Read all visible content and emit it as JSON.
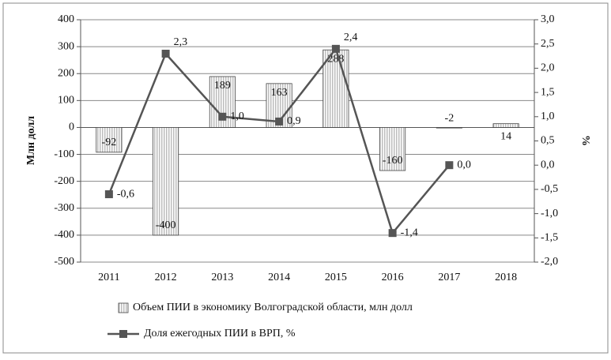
{
  "chart_data": {
    "type": "combo",
    "y_label": "Млн долл",
    "y2_label": "%",
    "categories": [
      "2011",
      "2012",
      "2013",
      "2014",
      "2015",
      "2016",
      "2017",
      "2018"
    ],
    "ylim": [
      -500,
      400
    ],
    "yticks": [
      -500,
      -400,
      -300,
      -200,
      -100,
      0,
      100,
      200,
      300,
      400
    ],
    "y2lim": [
      -2,
      3
    ],
    "y2ticks": [
      {
        "value": -2,
        "label": "-2,0"
      },
      {
        "value": -1.5,
        "label": "-1,5"
      },
      {
        "value": -1,
        "label": "-1,0"
      },
      {
        "value": -0.5,
        "label": "-0,5"
      },
      {
        "value": 0,
        "label": "0,0"
      },
      {
        "value": 0.5,
        "label": "0,5"
      },
      {
        "value": 1,
        "label": "1,0"
      },
      {
        "value": 1.5,
        "label": "1,5"
      },
      {
        "value": 2,
        "label": "2,0"
      },
      {
        "value": 2.5,
        "label": "2,5"
      },
      {
        "value": 3,
        "label": "3,0"
      }
    ],
    "grid": true,
    "legend": "bottom",
    "series": [
      {
        "name": "Объем ПИИ в экономику Волгоградской области, млн долл",
        "type": "bar",
        "color": "#bdbdbd",
        "values": [
          -92,
          -400,
          189,
          163,
          288,
          -160,
          -2,
          14
        ]
      },
      {
        "name": "Доля ежегодных ПИИ в ВРП, %",
        "type": "line",
        "axis": "y2",
        "color": "#555555",
        "values": [
          -0.6,
          2.3,
          1.0,
          0.9,
          2.4,
          -1.4,
          0.0,
          null
        ],
        "value_labels": [
          "-0,6",
          "2,3",
          "1,0",
          "0,9",
          "2,4",
          "-1,4",
          "0,0",
          null
        ]
      }
    ]
  }
}
